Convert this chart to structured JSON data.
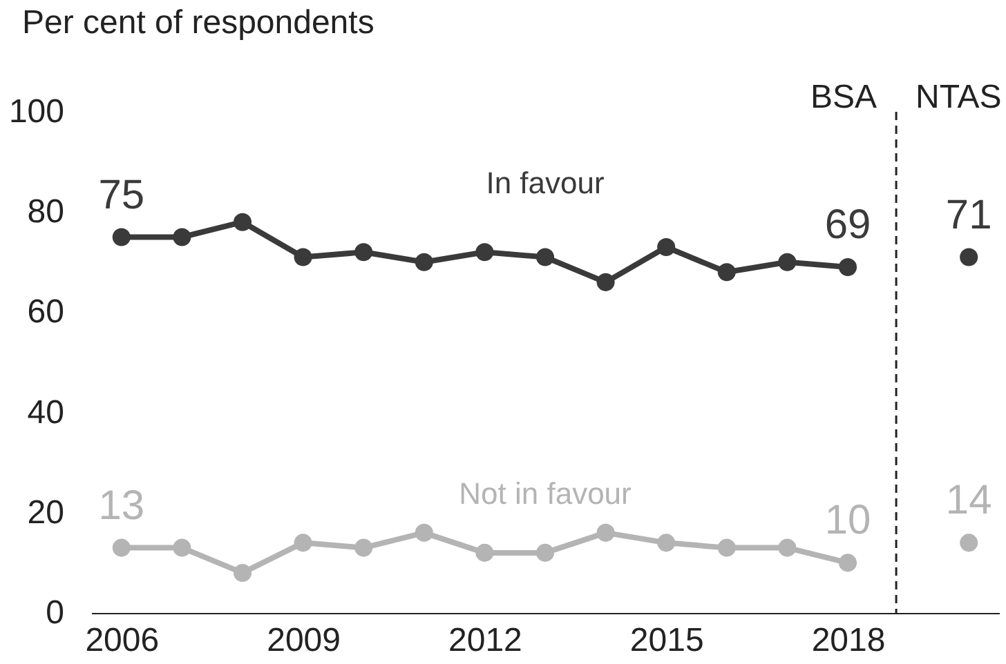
{
  "chart_data": {
    "type": "line",
    "ylabel": "Per cent of respondents",
    "x": [
      2006,
      2007,
      2008,
      2009,
      2010,
      2011,
      2012,
      2013,
      2014,
      2015,
      2016,
      2017,
      2018
    ],
    "series": [
      {
        "name": "In favour",
        "color": "#3a3a3a",
        "values": [
          75,
          75,
          78,
          71,
          72,
          70,
          72,
          71,
          66,
          73,
          68,
          70,
          69
        ],
        "value_labels": [
          "75",
          null,
          null,
          null,
          null,
          null,
          null,
          null,
          null,
          null,
          null,
          null,
          "69"
        ]
      },
      {
        "name": "Not in favour",
        "color": "#b4b4b4",
        "values": [
          13,
          13,
          8,
          14,
          13,
          16,
          12,
          12,
          16,
          14,
          13,
          13,
          10
        ],
        "value_labels": [
          "13",
          null,
          null,
          null,
          null,
          null,
          null,
          null,
          null,
          null,
          null,
          null,
          "10"
        ]
      },
      {
        "type": "scatter",
        "color": "#3a3a3a",
        "x": [
          2020
        ],
        "values": [
          71
        ],
        "value_labels": [
          "71"
        ]
      },
      {
        "type": "scatter",
        "color": "#b4b4b4",
        "x": [
          2020
        ],
        "values": [
          14
        ],
        "value_labels": [
          "14"
        ]
      }
    ],
    "xlim": [
      2005.5,
      2020.5
    ],
    "xticks": [
      2006,
      2009,
      2012,
      2015,
      2018
    ],
    "ylim": [
      0,
      100
    ],
    "yticks": [
      0,
      20,
      40,
      60,
      80,
      100
    ],
    "ref_lines": [
      {
        "axis": "x",
        "value": 2018.8,
        "line_style": "dashed",
        "color": "#222222"
      }
    ],
    "annotations": [
      "BSA",
      "NTAS"
    ],
    "marker": "circle",
    "grid": false
  }
}
